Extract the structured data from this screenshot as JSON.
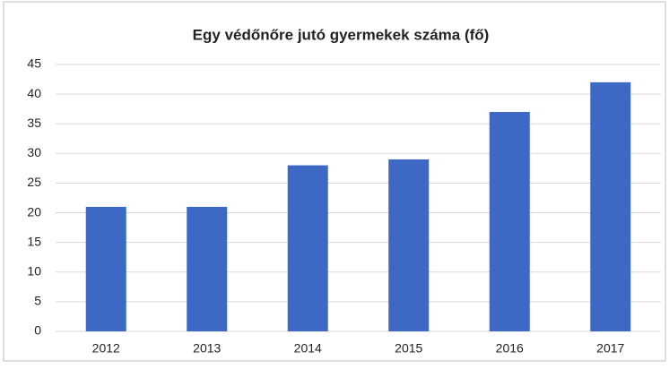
{
  "chart_data": {
    "type": "bar",
    "title": "Egy védőnőre jutó gyermekek száma (fő)",
    "categories": [
      "2012",
      "2013",
      "2014",
      "2015",
      "2016",
      "2017"
    ],
    "values": [
      21,
      21,
      28,
      29,
      37,
      42
    ],
    "color": "#3d68c4",
    "ylim": [
      0,
      45
    ],
    "yticks": [
      0,
      5,
      10,
      15,
      20,
      25,
      30,
      35,
      40,
      45
    ],
    "grid": true
  }
}
